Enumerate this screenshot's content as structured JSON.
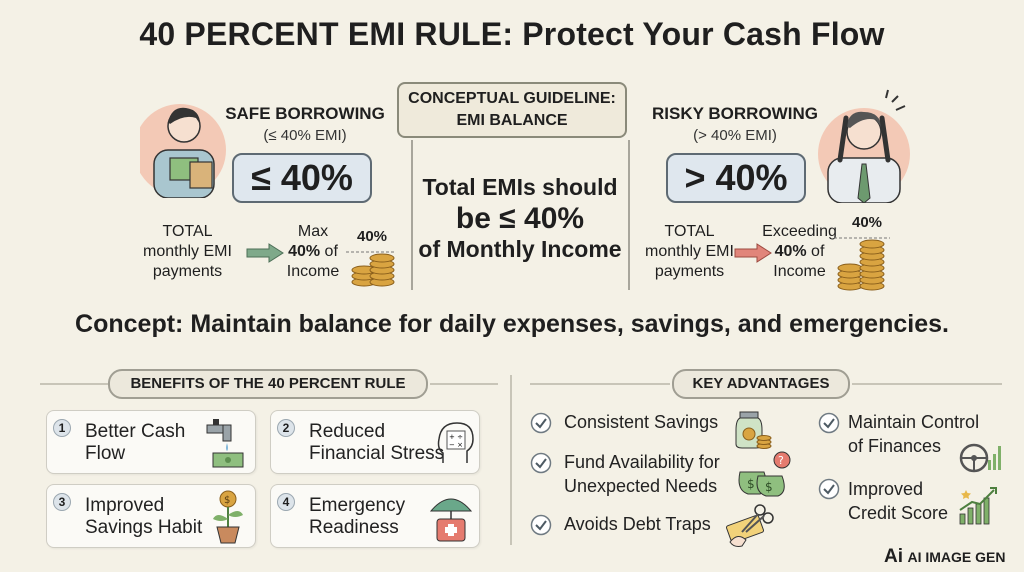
{
  "title": "40 PERCENT EMI RULE: Protect Your Cash Flow",
  "safe": {
    "heading": "SAFE BORROWING",
    "sub": "(≤ 40% EMI)",
    "pill": "≤ 40%",
    "flow_left": [
      "TOTAL",
      "monthly EMI",
      "payments"
    ],
    "flow_right_1": "Max",
    "flow_right_2_bold": "40%",
    "flow_right_2_rest": " of",
    "flow_right_3": "Income",
    "coin_label": "40%"
  },
  "guideline": {
    "line1": "CONCEPTUAL GUIDELINE:",
    "line2": "EMI BALANCE",
    "text1": "Total EMIs should",
    "text2": "be ≤ 40%",
    "text3": "of Monthly Income"
  },
  "risky": {
    "heading": "RISKY BORROWING",
    "sub": "(> 40% EMI)",
    "pill": "> 40%",
    "flow_left": [
      "TOTAL",
      "monthly EMI",
      "payments"
    ],
    "flow_right_1": "Exceeding",
    "flow_right_2_bold": "40%",
    "flow_right_2_rest": " of",
    "flow_right_3": "Income",
    "coin_label": "40%"
  },
  "concept": "Concept: Maintain balance for daily expenses, savings, and emergencies.",
  "benefits": {
    "heading": "BENEFITS OF THE 40 PERCENT RULE",
    "items": [
      {
        "num": "1",
        "line1": "Better Cash",
        "line2": "Flow",
        "icon": "faucet-money-icon"
      },
      {
        "num": "2",
        "line1": "Reduced",
        "line2": "Financial Stress",
        "icon": "head-calculator-icon"
      },
      {
        "num": "3",
        "line1": "Improved",
        "line2": "Savings Habit",
        "icon": "money-plant-icon"
      },
      {
        "num": "4",
        "line1": "Emergency",
        "line2": "Readiness",
        "icon": "umbrella-firstaid-icon"
      }
    ]
  },
  "advantages": {
    "heading": "KEY ADVANTAGES",
    "left": [
      {
        "line1": "Consistent Savings",
        "line2": "",
        "icon": "savings-jar-icon"
      },
      {
        "line1": "Fund Availability for",
        "line2": "Unexpected Needs",
        "icon": "money-bags-icon"
      },
      {
        "line1": "Avoids Debt Traps",
        "line2": "",
        "icon": "scissors-card-icon"
      }
    ],
    "right": [
      {
        "line1": "Maintain Control",
        "line2": "of Finances",
        "icon": "steering-chart-icon"
      },
      {
        "line1": "Improved",
        "line2": "Credit Score",
        "icon": "growth-chart-icon"
      }
    ]
  },
  "logo": {
    "mark": "Ai",
    "text": "AI IMAGE GEN"
  },
  "colors": {
    "background": "#f4f1e6",
    "safe_arrow": "#7fa98a",
    "risky_arrow": "#e1857a",
    "pill_fill": "#dfe7ee",
    "coin": "#d9a441"
  }
}
